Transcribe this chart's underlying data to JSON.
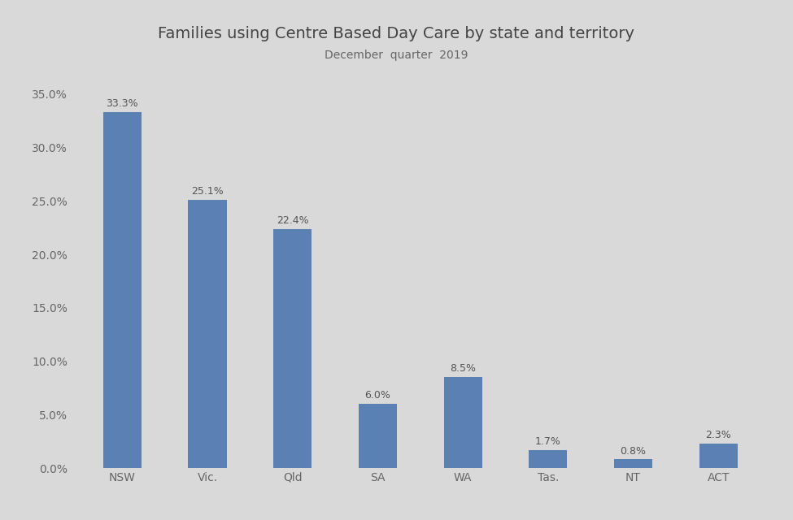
{
  "title": "Families using Centre Based Day Care by state and territory",
  "subtitle": "December  quarter  2019",
  "categories": [
    "NSW",
    "Vic.",
    "Qld",
    "SA",
    "WA",
    "Tas.",
    "NT",
    "ACT"
  ],
  "values": [
    33.3,
    25.1,
    22.4,
    6.0,
    8.5,
    1.7,
    0.8,
    2.3
  ],
  "labels": [
    "33.3%",
    "25.1%",
    "22.4%",
    "6.0%",
    "8.5%",
    "1.7%",
    "0.8%",
    "2.3%"
  ],
  "bar_color": "#5b80b4",
  "background_color": "#d9d9d9",
  "ylim": [
    0,
    37
  ],
  "yticks": [
    0,
    5,
    10,
    15,
    20,
    25,
    30,
    35
  ],
  "ytick_labels": [
    "0.0%",
    "5.0%",
    "10.0%",
    "15.0%",
    "20.0%",
    "25.0%",
    "30.0%",
    "35.0%"
  ],
  "title_fontsize": 14,
  "subtitle_fontsize": 10,
  "label_fontsize": 9,
  "tick_fontsize": 10,
  "label_color": "#555555",
  "tick_color": "#666666"
}
